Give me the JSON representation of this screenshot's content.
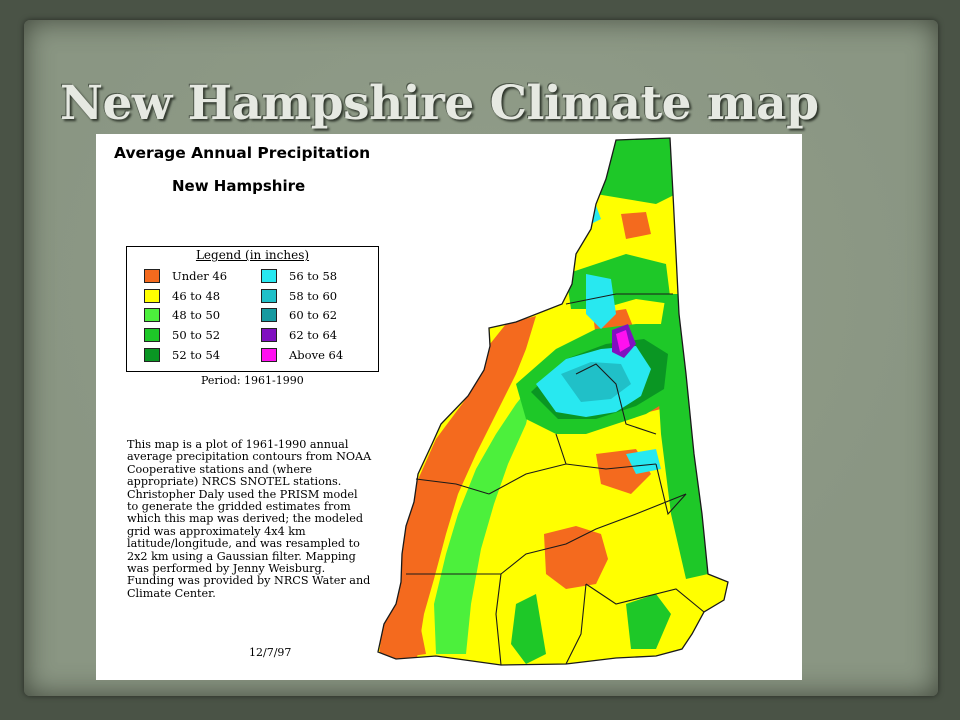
{
  "slide": {
    "title": "New Hampshire Climate map"
  },
  "map": {
    "title": "Average Annual Precipitation",
    "subtitle": "New Hampshire",
    "legend": {
      "title": "Legend (in inches)",
      "items": [
        {
          "label": "Under 46",
          "color": "#f46a1e"
        },
        {
          "label": "46 to 48",
          "color": "#ffff00"
        },
        {
          "label": "48 to 50",
          "color": "#4cf03c"
        },
        {
          "label": "50 to 52",
          "color": "#1ec828"
        },
        {
          "label": "52 to 54",
          "color": "#0a9623"
        },
        {
          "label": "56 to 58",
          "color": "#28e8f0"
        },
        {
          "label": "58 to 60",
          "color": "#20c0c8"
        },
        {
          "label": "60 to 62",
          "color": "#179aa0"
        },
        {
          "label": "62 to 64",
          "color": "#8010c0"
        },
        {
          "label": "Above 64",
          "color": "#ff10f0"
        }
      ]
    },
    "period": "Period: 1961-1990",
    "description": "This map is a plot of 1961-1990 annual average precipitation contours from NOAA Cooperative stations and (where appropriate) NRCS SNOTEL stations. Christopher Daly used the PRISM model to generate the gridded estimates from which this map was derived; the modeled grid was approximately 4x4 km latitude/longitude, and was resampled to 2x2 km using a Gaussian filter. Mapping was performed by Jenny Weisburg. Funding was provided by NRCS Water and Climate Center.",
    "date": "12/7/97"
  }
}
